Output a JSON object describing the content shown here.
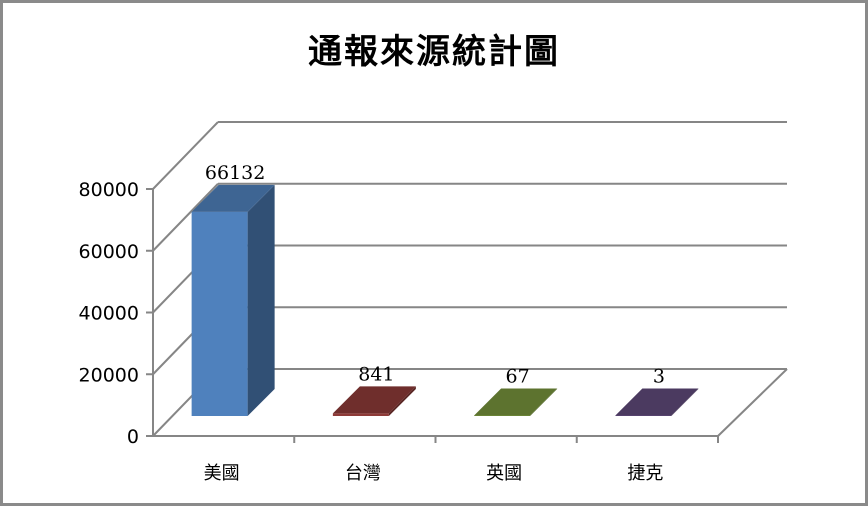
{
  "title": "通報來源統計圖",
  "chart_data": {
    "type": "bar",
    "subtype": "3d-column",
    "title": "通報來源統計圖",
    "categories": [
      "美國",
      "台灣",
      "英國",
      "捷克"
    ],
    "values": [
      66132,
      841,
      67,
      3
    ],
    "data_labels": [
      "66132",
      "841",
      "67",
      "3"
    ],
    "colors": [
      "#4f81bd",
      "#8e3b38",
      "#77933c",
      "#604a7b"
    ],
    "xlabel": "",
    "ylabel": "",
    "ylim": [
      0,
      80000
    ],
    "yticks": [
      "0",
      "20000",
      "40000",
      "60000",
      "80000"
    ],
    "grid": true,
    "legend": "none"
  }
}
